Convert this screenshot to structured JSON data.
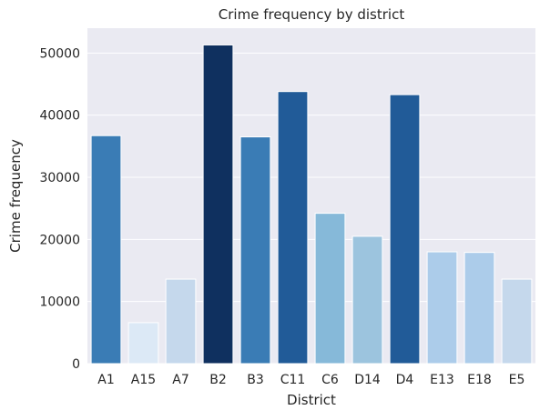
{
  "chart_data": {
    "type": "bar",
    "title": "Crime frequency by district",
    "xlabel": "District",
    "ylabel": "Crime frequency",
    "ylim": [
      0,
      54000
    ],
    "yticks": [
      0,
      10000,
      20000,
      30000,
      40000,
      50000
    ],
    "grid": true,
    "background": "#eaeaf2",
    "gridColor": "#ffffff",
    "categories": [
      "A1",
      "A15",
      "A7",
      "B2",
      "B3",
      "C11",
      "C6",
      "D14",
      "D4",
      "E13",
      "E18",
      "E5"
    ],
    "values": [
      36700,
      6600,
      13600,
      51300,
      36500,
      43800,
      24200,
      20500,
      43300,
      18000,
      17900,
      13600
    ],
    "colors": [
      "#3a7cb5",
      "#dce9f6",
      "#c5d8ec",
      "#0f305f",
      "#3a7cb5",
      "#215b98",
      "#86b9d9",
      "#9cc4de",
      "#215b98",
      "#acccea",
      "#acccea",
      "#c5d8ec"
    ]
  }
}
